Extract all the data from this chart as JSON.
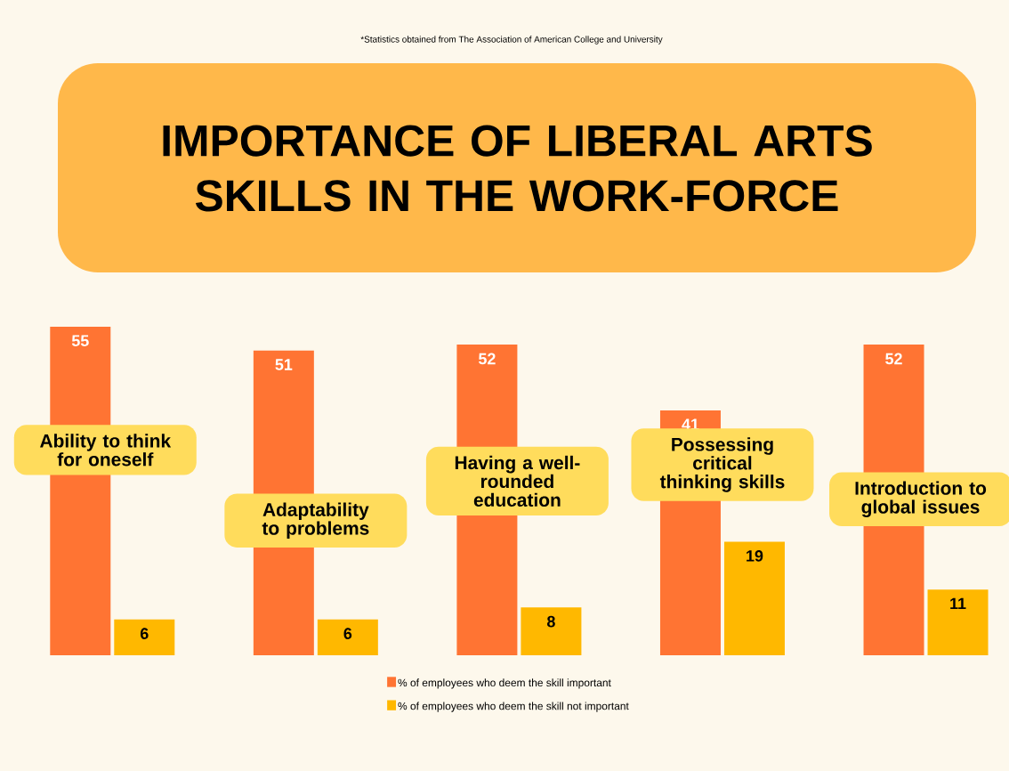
{
  "chart_data": {
    "type": "bar",
    "title": "IMPORTANCE OF LIBERAL ARTS SKILLS IN THE WORK-FORCE",
    "annotations": [
      "*Statistics obtained from The Association of American College and University"
    ],
    "categories": [
      "Ability to think for oneself",
      "Adaptability to problems",
      "Having a well-rounded education",
      "Possessing critical thinking skills",
      "Introduction to global issues"
    ],
    "series": [
      {
        "name": "% of employees who deem the skill important",
        "color": "#ff7433",
        "values": [
          55,
          51,
          52,
          41,
          52
        ]
      },
      {
        "name": "% of employees who deem the skill not important",
        "color": "#ffb800",
        "values": [
          6,
          6,
          8,
          19,
          11
        ]
      }
    ],
    "data_labels": true,
    "legend": "bottom",
    "tick_labels": false
  }
}
